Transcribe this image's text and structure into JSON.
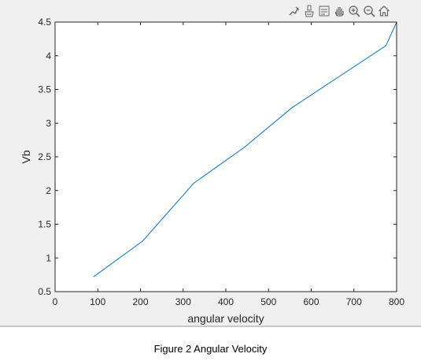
{
  "caption": "Figure 2 Angular Velocity",
  "toolbar": {
    "buttons": [
      "edit-plot-icon",
      "brush-icon",
      "data-tips-icon",
      "pan-icon",
      "zoom-in-icon",
      "zoom-out-icon",
      "home-icon"
    ]
  },
  "colors": {
    "line": "#0072bd",
    "axes": "#262626",
    "window": "#f0f0f0"
  },
  "chart_data": {
    "type": "line",
    "xlabel": "angular velocity",
    "ylabel": "Vb",
    "xlim": [
      0,
      800
    ],
    "ylim": [
      0.5,
      4.5
    ],
    "xticks": [
      0,
      100,
      200,
      300,
      400,
      500,
      600,
      700,
      800
    ],
    "yticks": [
      0.5,
      1,
      1.5,
      2,
      2.5,
      3,
      3.5,
      4,
      4.5
    ],
    "xtick_labels": [
      "0",
      "100",
      "200",
      "300",
      "400",
      "500",
      "600",
      "700",
      "800"
    ],
    "ytick_labels": [
      "0.5",
      "1",
      "1.5",
      "2",
      "2.5",
      "3",
      "3.5",
      "4",
      "4.5"
    ],
    "grid": false,
    "series": [
      {
        "x": [
          90,
          205,
          325,
          443,
          555,
          665,
          775,
          800
        ],
        "y": [
          0.72,
          1.25,
          2.11,
          2.64,
          3.23,
          3.69,
          4.15,
          4.5
        ]
      }
    ]
  }
}
